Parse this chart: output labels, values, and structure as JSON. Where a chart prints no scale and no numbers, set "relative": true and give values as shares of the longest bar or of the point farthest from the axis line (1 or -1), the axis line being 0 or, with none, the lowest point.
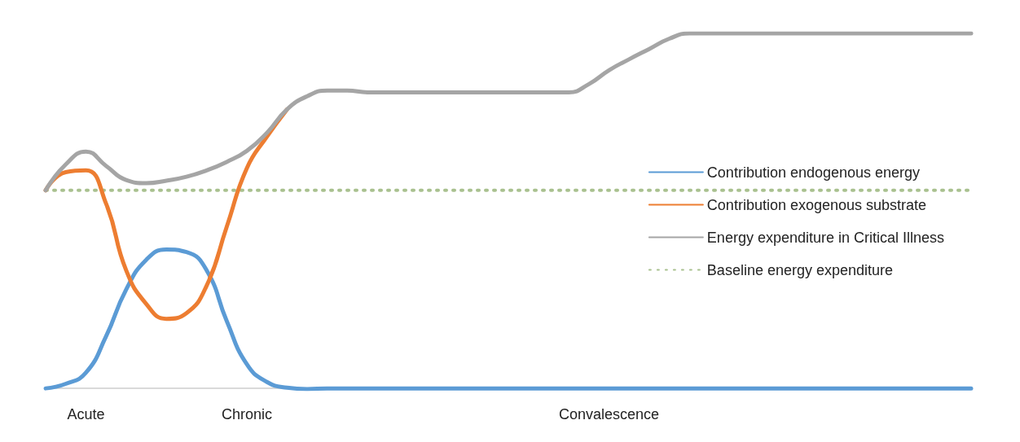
{
  "chart_data": {
    "type": "line",
    "relative": true,
    "legend": "right",
    "marker": "none",
    "grid": false,
    "categories": [
      null,
      null,
      "Acute",
      null,
      null,
      null,
      null,
      null,
      null,
      null,
      "Chronic",
      null,
      null,
      null,
      null,
      null,
      null,
      null,
      null,
      null,
      null,
      null,
      null,
      null,
      null,
      null,
      null,
      null,
      "Convalescence",
      null,
      null,
      null,
      null,
      null,
      null,
      null,
      null,
      null,
      null,
      null,
      null,
      null,
      null,
      null,
      null,
      null,
      null
    ],
    "series": [
      {
        "name": "Contribution endogenous energy",
        "color": "#5b9bd5",
        "values": [
          0,
          0.013,
          0.044,
          0.146,
          0.278,
          0.362,
          0.391,
          0.384,
          0.333,
          0.19,
          0.068,
          0.018,
          0.002,
          -0.002,
          0,
          0,
          0,
          0,
          0,
          0,
          0,
          0,
          0,
          0,
          0,
          0,
          0,
          0,
          0,
          0,
          0,
          0,
          0,
          0,
          0,
          0,
          0,
          0,
          0,
          0,
          0,
          0,
          0,
          0,
          0,
          0,
          0
        ]
      },
      {
        "name": "Contribution exogenous substrate",
        "color": "#ed7d31",
        "values": [
          0.558,
          0.609,
          0.614,
          0.521,
          0.333,
          0.238,
          0.196,
          0.212,
          0.289,
          0.455,
          0.62,
          0.709,
          0.786,
          null,
          null,
          null,
          null,
          null,
          null,
          null,
          null,
          null,
          null,
          null,
          null,
          null,
          null,
          null,
          null,
          null,
          null,
          null,
          null,
          null,
          null,
          null,
          null,
          null,
          null,
          null,
          null,
          null,
          null,
          null,
          null,
          null,
          null
        ]
      },
      {
        "name": "Energy expenditure in Critical Illness",
        "color": "#a5a5a5",
        "values": [
          0.558,
          0.631,
          0.667,
          0.627,
          0.587,
          0.578,
          0.585,
          0.596,
          0.614,
          0.638,
          0.669,
          0.72,
          0.786,
          0.823,
          0.839,
          0.839,
          0.834,
          0.834,
          0.834,
          0.834,
          0.834,
          0.834,
          0.834,
          0.834,
          0.834,
          0.834,
          0.834,
          0.857,
          0.896,
          0.927,
          0.956,
          0.985,
          1,
          1,
          1,
          1,
          1,
          1,
          1,
          1,
          1,
          1,
          1,
          1,
          1,
          1,
          1
        ]
      },
      {
        "name": "Baseline energy expenditure",
        "color": "#a9c18f",
        "line_style": "dotted",
        "values": [
          0.558,
          0.558,
          0.558,
          0.558,
          0.558,
          0.558,
          0.558,
          0.558,
          0.558,
          0.558,
          0.558,
          0.558,
          0.558,
          0.558,
          0.558,
          0.558,
          0.558,
          0.558,
          0.558,
          0.558,
          0.558,
          0.558,
          0.558,
          0.558,
          0.558,
          0.558,
          0.558,
          0.558,
          0.558,
          0.558,
          0.558,
          0.558,
          0.558,
          0.558,
          0.558,
          0.558,
          0.558,
          0.558,
          0.558,
          0.558,
          0.558,
          0.558,
          0.558,
          0.558,
          0.558,
          0.558,
          0.558
        ]
      }
    ]
  }
}
